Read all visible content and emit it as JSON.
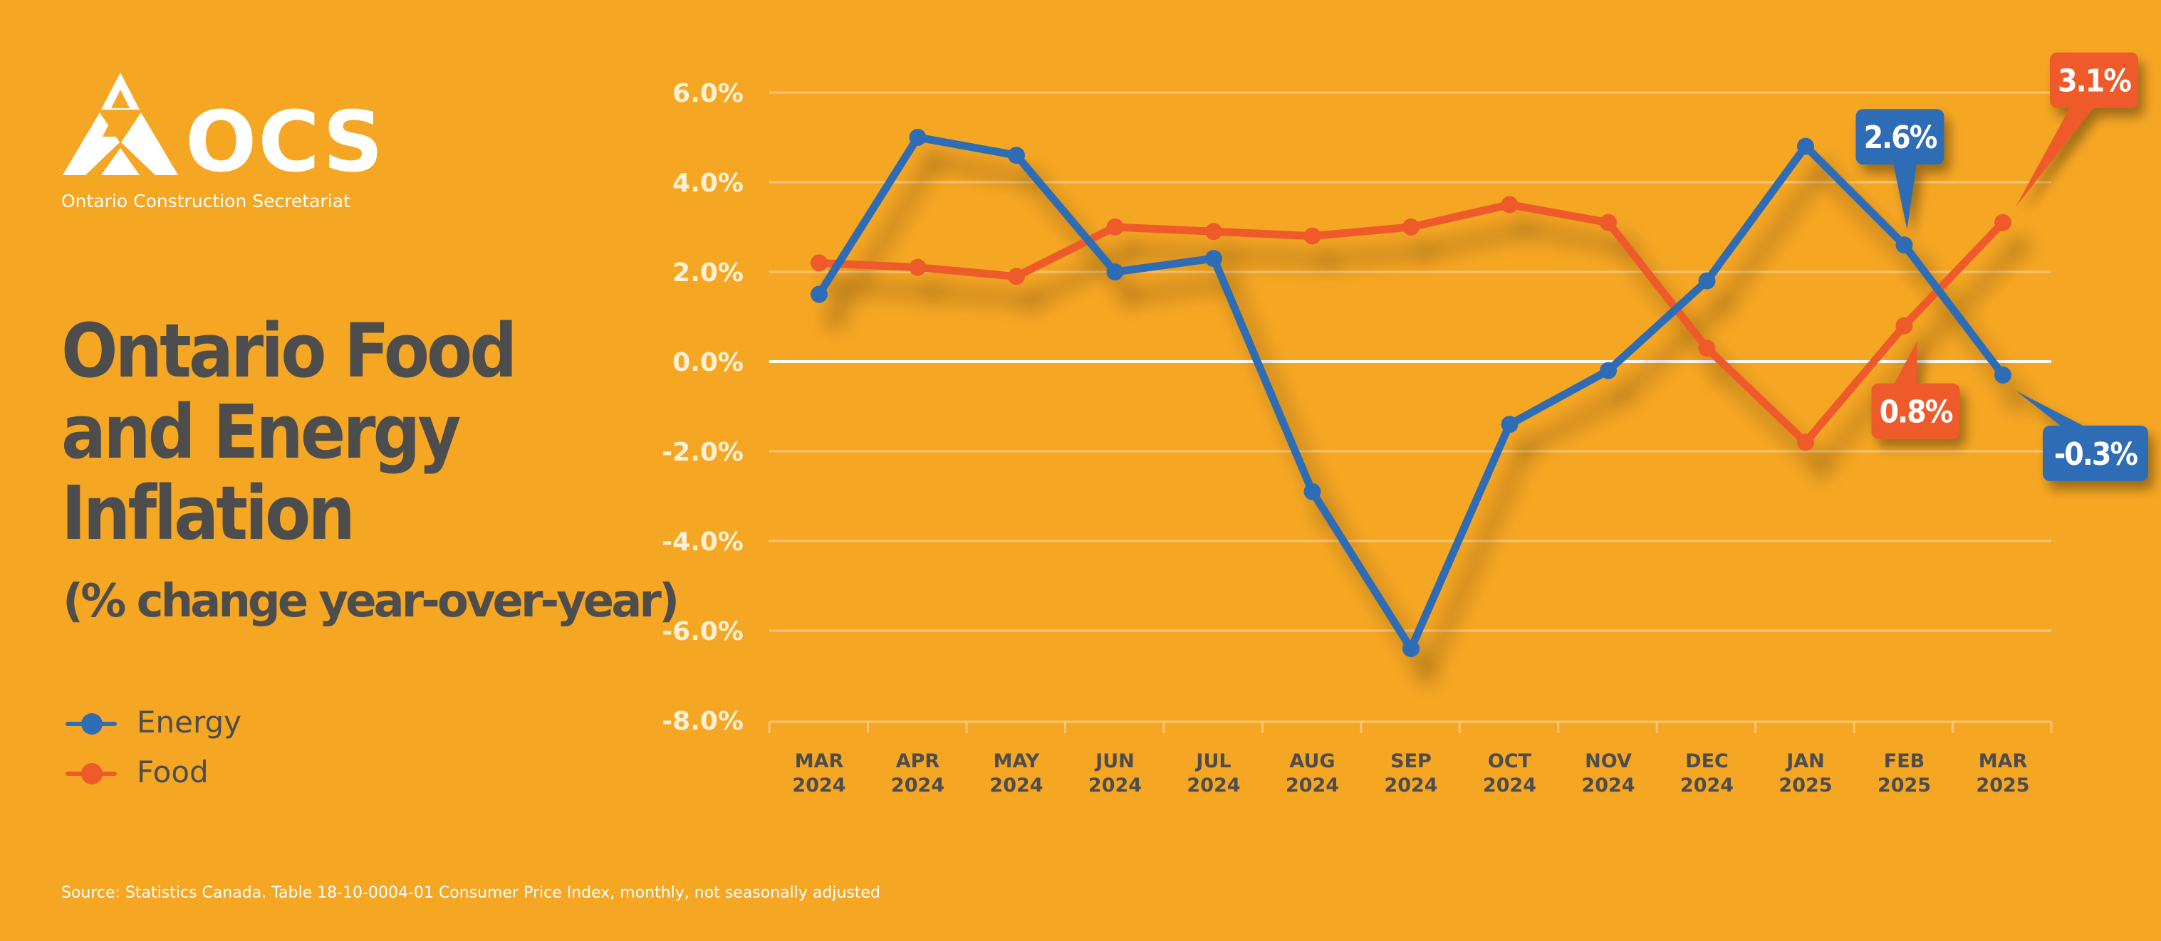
{
  "brand": {
    "logo_text": "OCS",
    "logo_subtitle": "Ontario Construction Secretariat"
  },
  "heading": {
    "title_lines": [
      "Ontario Food",
      "and Energy",
      "Inflation"
    ],
    "subtitle": "(% change year-over-year)"
  },
  "source": "Source: Statistics Canada. Table 18-10-0004-01  Consumer Price Index, monthly, not seasonally adjusted",
  "colors": {
    "background": "#F5A623",
    "energy": "#2F6DB5",
    "food": "#EE5A2A",
    "title": "#4D4D4D",
    "axis_text": "#4D4D4D",
    "tick_text": "#FFF1D6",
    "grid": "#F8C775"
  },
  "chart_data": {
    "type": "line",
    "title": "Ontario Food and Energy Inflation",
    "subtitle": "(% change year-over-year)",
    "categories": [
      {
        "month": "MAR",
        "year": "2024"
      },
      {
        "month": "APR",
        "year": "2024"
      },
      {
        "month": "MAY",
        "year": "2024"
      },
      {
        "month": "JUN",
        "year": "2024"
      },
      {
        "month": "JUL",
        "year": "2024"
      },
      {
        "month": "AUG",
        "year": "2024"
      },
      {
        "month": "SEP",
        "year": "2024"
      },
      {
        "month": "OCT",
        "year": "2024"
      },
      {
        "month": "NOV",
        "year": "2024"
      },
      {
        "month": "DEC",
        "year": "2024"
      },
      {
        "month": "JAN",
        "year": "2025"
      },
      {
        "month": "FEB",
        "year": "2025"
      },
      {
        "month": "MAR",
        "year": "2025"
      }
    ],
    "y_ticks": [
      "6.0%",
      "4.0%",
      "2.0%",
      "0.0%",
      "-2.0%",
      "-4.0%",
      "-6.0%",
      "-8.0%"
    ],
    "ylim": [
      -8,
      6
    ],
    "grid": true,
    "legend_position": "bottom-left",
    "series": [
      {
        "name": "Energy",
        "color": "#2F6DB5",
        "values": [
          1.5,
          5.0,
          4.6,
          2.0,
          2.3,
          -2.9,
          -6.4,
          -1.4,
          -0.2,
          1.8,
          4.8,
          2.6,
          -0.3
        ]
      },
      {
        "name": "Food",
        "color": "#EE5A2A",
        "values": [
          2.2,
          2.1,
          1.9,
          3.0,
          2.9,
          2.8,
          3.0,
          3.5,
          3.1,
          0.3,
          -1.8,
          0.8,
          3.1
        ]
      }
    ],
    "callouts": [
      {
        "series": "Energy",
        "point_index": 11,
        "text": "2.6%",
        "placement": "above-left"
      },
      {
        "series": "Food",
        "point_index": 12,
        "text": "3.1%",
        "placement": "above-right"
      },
      {
        "series": "Food",
        "point_index": 11,
        "text": "0.8%",
        "placement": "below"
      },
      {
        "series": "Energy",
        "point_index": 12,
        "text": "-0.3%",
        "placement": "below-right"
      }
    ]
  }
}
